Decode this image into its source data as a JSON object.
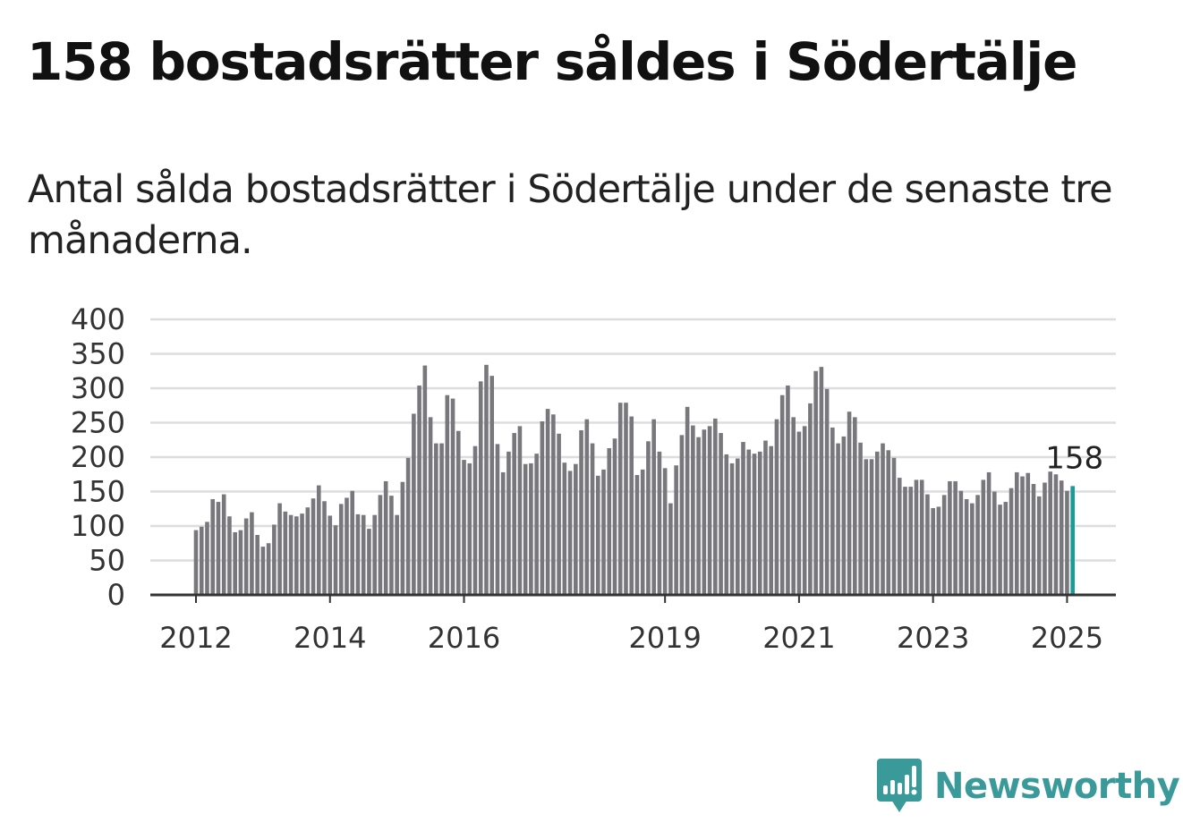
{
  "title": "158 bostadsrätter såldes i Södertälje",
  "subtitle": "Antal sålda bostadsrätter i Södertälje under de senaste tre månaderna.",
  "logo": {
    "name": "Newsworthy",
    "color": "#3a9a99",
    "icon": "newsworthy-logo-icon"
  },
  "colors": {
    "bar": "#78777c",
    "highlight": "#1a9a99",
    "grid": "#dddddd",
    "axis": "#333333"
  },
  "chart_data": {
    "type": "bar",
    "title": "",
    "xlabel": "",
    "ylabel": "",
    "ylim": [
      0,
      400
    ],
    "yticks": [
      "0",
      "50",
      "100",
      "150",
      "200",
      "250",
      "300",
      "350",
      "400"
    ],
    "xticks": [
      "2012",
      "2014",
      "2016",
      "2019",
      "2021",
      "2023",
      "2025"
    ],
    "grid": true,
    "start": "2012-01",
    "end": "2025-02",
    "highlight_label": "158",
    "values": [
      94,
      99,
      106,
      139,
      135,
      146,
      114,
      91,
      94,
      111,
      120,
      87,
      70,
      75,
      102,
      133,
      121,
      116,
      114,
      118,
      127,
      140,
      159,
      136,
      115,
      101,
      132,
      141,
      151,
      117,
      116,
      96,
      116,
      145,
      165,
      144,
      116,
      164,
      199,
      263,
      304,
      333,
      258,
      220,
      220,
      290,
      285,
      238,
      196,
      191,
      216,
      310,
      334,
      318,
      219,
      178,
      208,
      235,
      245,
      190,
      191,
      205,
      252,
      270,
      262,
      234,
      192,
      180,
      190,
      239,
      255,
      220,
      173,
      182,
      213,
      227,
      279,
      279,
      259,
      174,
      182,
      223,
      255,
      208,
      184,
      133,
      188,
      232,
      273,
      246,
      229,
      240,
      245,
      256,
      235,
      204,
      191,
      198,
      222,
      211,
      205,
      208,
      224,
      216,
      255,
      290,
      304,
      258,
      237,
      245,
      278,
      325,
      331,
      299,
      243,
      220,
      230,
      266,
      258,
      221,
      197,
      197,
      208,
      220,
      210,
      199,
      170,
      157,
      157,
      167,
      167,
      146,
      126,
      128,
      145,
      165,
      165,
      151,
      139,
      133,
      145,
      167,
      178,
      150,
      131,
      135,
      155,
      178,
      172,
      177,
      161,
      143,
      163,
      179,
      175,
      166,
      151,
      158
    ]
  }
}
